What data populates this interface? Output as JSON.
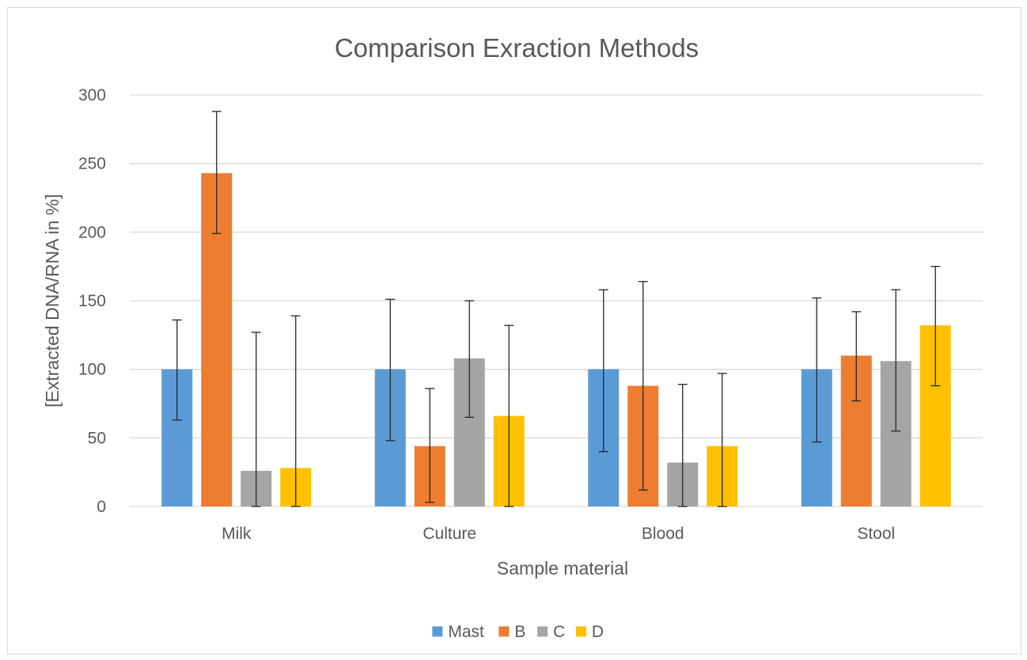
{
  "chart_data": {
    "type": "bar",
    "title": "Comparison Exraction Methods",
    "xlabel": "Sample material",
    "ylabel": "[Extracted  DNA/RNA in %]",
    "ylim": [
      0,
      300
    ],
    "yticks": [
      0,
      50,
      100,
      150,
      200,
      250,
      300
    ],
    "grid": true,
    "legend_position": "bottom",
    "categories": [
      "Milk",
      "Culture",
      "Blood",
      "Stool"
    ],
    "series": [
      {
        "name": "Mast",
        "color": "#5b9bd5",
        "values": [
          100,
          100,
          100,
          100
        ],
        "error_low": [
          63,
          48,
          40,
          47
        ],
        "error_high": [
          136,
          151,
          158,
          152
        ]
      },
      {
        "name": "B",
        "color": "#ed7d31",
        "values": [
          243,
          44,
          88,
          110
        ],
        "error_low": [
          199,
          3,
          12,
          77
        ],
        "error_high": [
          288,
          86,
          164,
          142
        ]
      },
      {
        "name": "C",
        "color": "#a5a5a5",
        "values": [
          26,
          108,
          32,
          106
        ],
        "error_low": [
          0,
          65,
          0,
          55
        ],
        "error_high": [
          127,
          150,
          89,
          158
        ]
      },
      {
        "name": "D",
        "color": "#ffc000",
        "values": [
          28,
          66,
          44,
          132
        ],
        "error_low": [
          0,
          0,
          0,
          88
        ],
        "error_high": [
          139,
          132,
          97,
          175
        ]
      }
    ]
  }
}
